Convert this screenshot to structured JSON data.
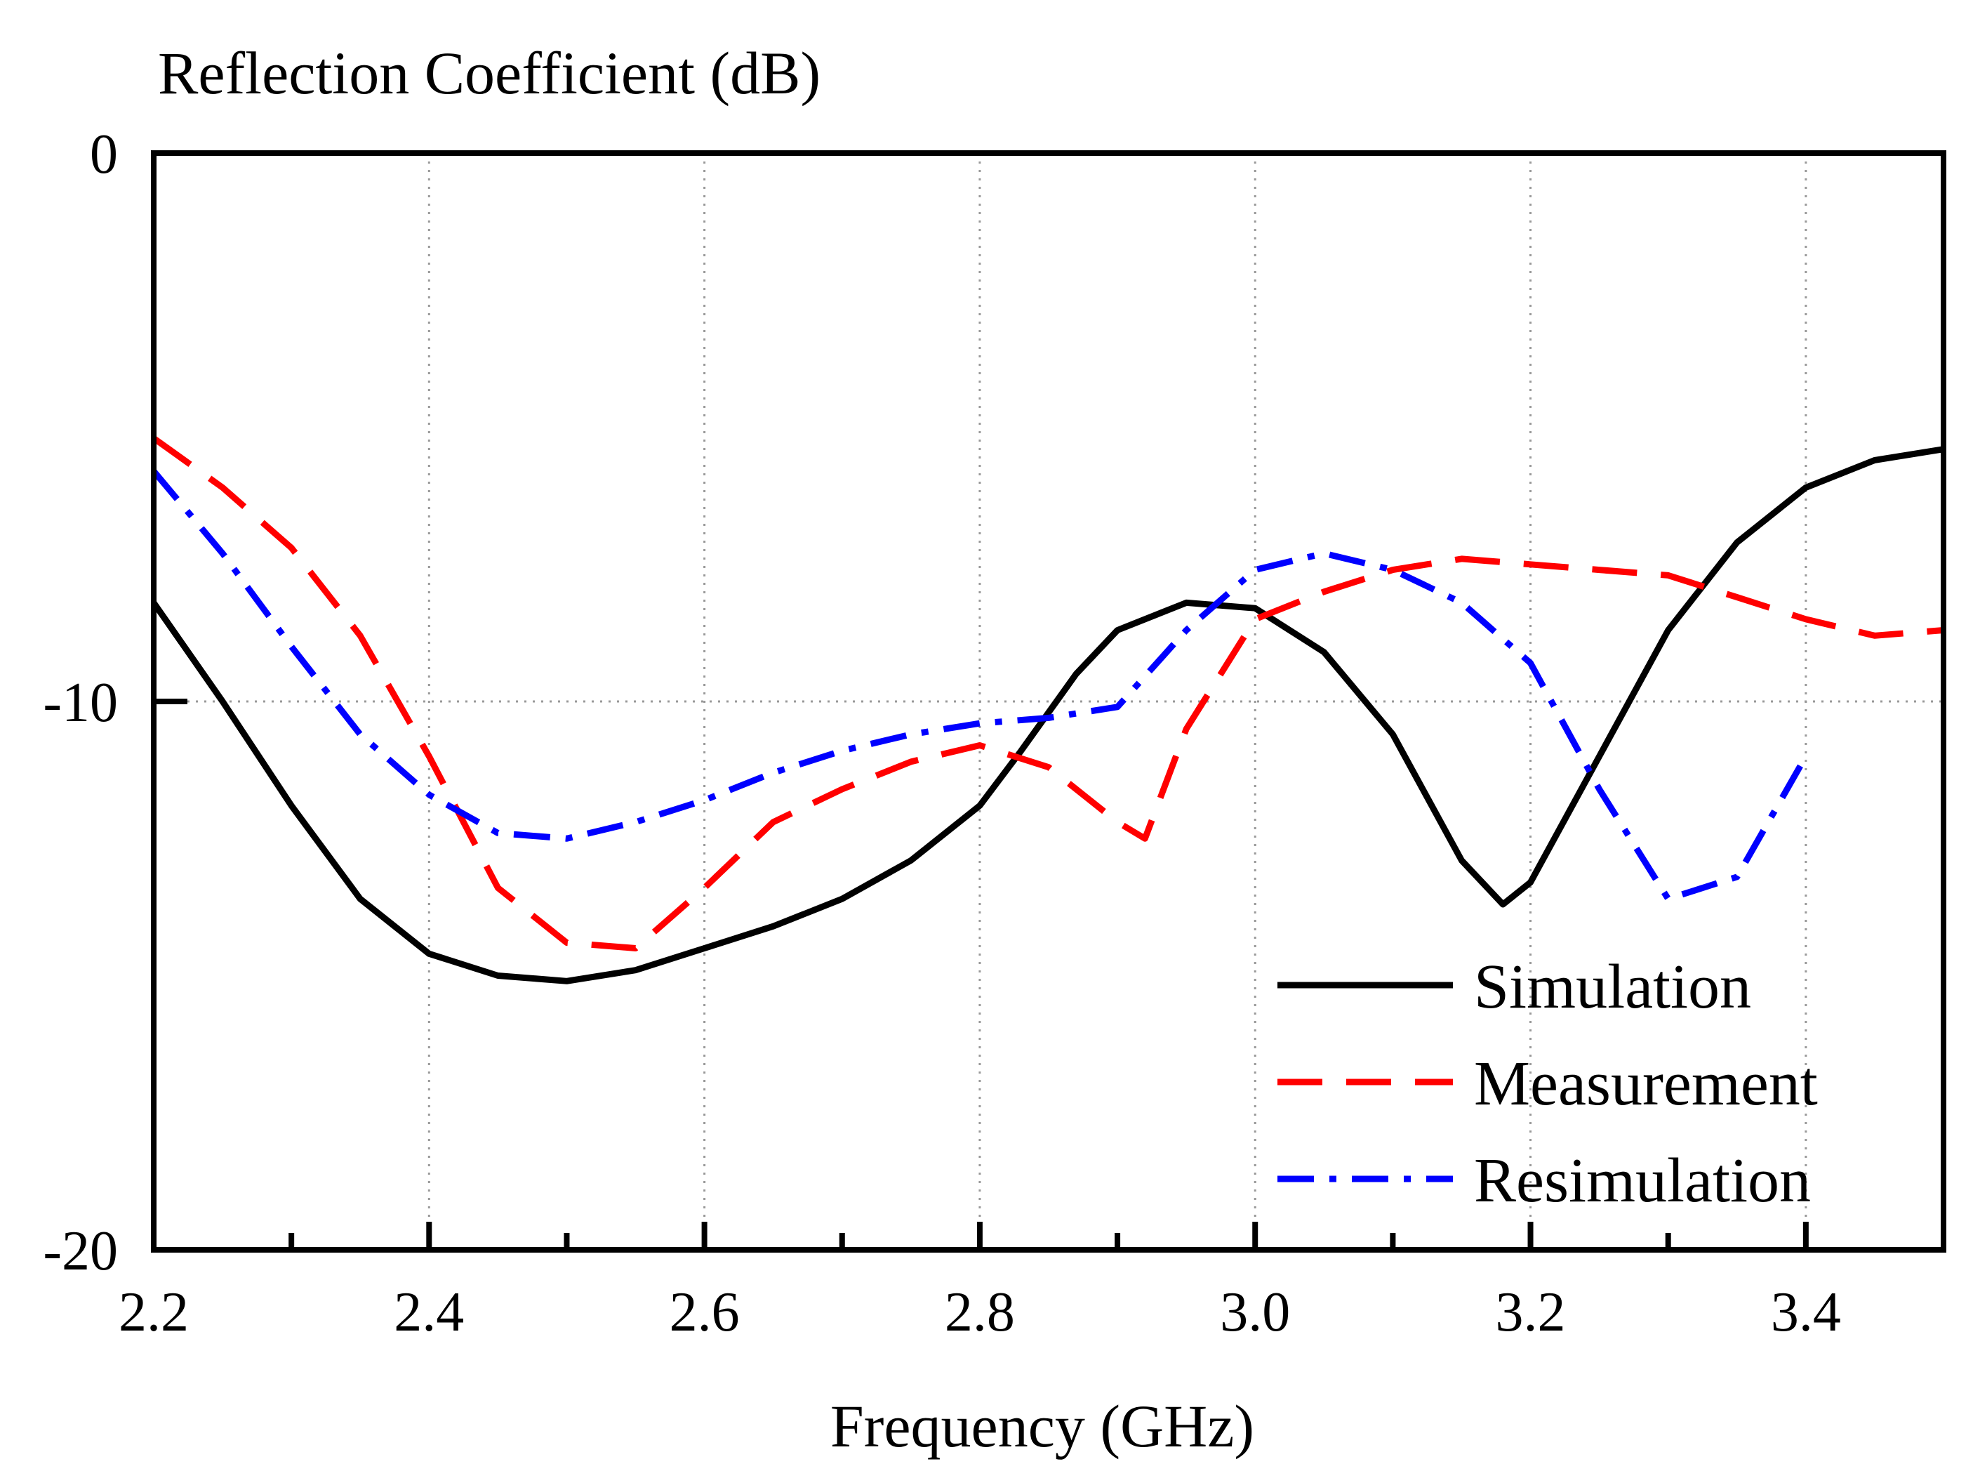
{
  "chart_data": {
    "type": "line",
    "title": "",
    "ylabel": "Reflection Coefficient (dB)",
    "xlabel": "Frequency (GHz)",
    "xlim": [
      2.2,
      3.5
    ],
    "ylim": [
      -20,
      0
    ],
    "x_ticks": [
      2.2,
      2.4,
      2.6,
      2.8,
      3.0,
      3.2,
      3.4
    ],
    "x_tick_labels": [
      "2.2",
      "2.4",
      "2.6",
      "2.8",
      "3.0",
      "3.2",
      "3.4"
    ],
    "x_minor_ticks": [
      2.3,
      2.5,
      2.7,
      2.9,
      3.1,
      3.3
    ],
    "y_ticks": [
      0,
      -10,
      -20
    ],
    "y_tick_labels": [
      "0",
      "-10",
      "-20"
    ],
    "grid": true,
    "legend_position": "bottom-right",
    "series": [
      {
        "name": "Simulation",
        "color": "#000000",
        "dash": "solid",
        "x": [
          2.2,
          2.25,
          2.3,
          2.35,
          2.4,
          2.45,
          2.5,
          2.55,
          2.6,
          2.65,
          2.7,
          2.75,
          2.8,
          2.83,
          2.87,
          2.9,
          2.95,
          3.0,
          3.05,
          3.1,
          3.15,
          3.18,
          3.2,
          3.25,
          3.3,
          3.35,
          3.4,
          3.45,
          3.5
        ],
        "y": [
          -8.2,
          -10.0,
          -11.9,
          -13.6,
          -14.6,
          -15.0,
          -15.1,
          -14.9,
          -14.5,
          -14.1,
          -13.6,
          -12.9,
          -11.9,
          -10.9,
          -9.5,
          -8.7,
          -8.2,
          -8.3,
          -9.1,
          -10.6,
          -12.9,
          -13.7,
          -13.3,
          -11.0,
          -8.7,
          -7.1,
          -6.1,
          -5.6,
          -5.4
        ]
      },
      {
        "name": "Measurement",
        "color": "#ff0000",
        "dash": "dashed",
        "x": [
          2.2,
          2.25,
          2.3,
          2.35,
          2.4,
          2.45,
          2.5,
          2.55,
          2.6,
          2.65,
          2.7,
          2.75,
          2.8,
          2.85,
          2.9,
          2.92,
          2.95,
          3.0,
          3.05,
          3.1,
          3.15,
          3.2,
          3.25,
          3.3,
          3.35,
          3.4,
          3.45,
          3.5
        ],
        "y": [
          -5.2,
          -6.1,
          -7.2,
          -8.8,
          -11.0,
          -13.4,
          -14.4,
          -14.5,
          -13.4,
          -12.2,
          -11.6,
          -11.1,
          -10.8,
          -11.2,
          -12.2,
          -12.5,
          -10.5,
          -8.5,
          -8.0,
          -7.6,
          -7.4,
          -7.5,
          -7.6,
          -7.7,
          -8.1,
          -8.5,
          -8.8,
          -8.7
        ]
      },
      {
        "name": "Resimulation",
        "color": "#0000ff",
        "dash": "dashdot",
        "x": [
          2.2,
          2.25,
          2.3,
          2.35,
          2.4,
          2.45,
          2.5,
          2.55,
          2.6,
          2.65,
          2.7,
          2.75,
          2.8,
          2.85,
          2.9,
          2.95,
          3.0,
          3.05,
          3.1,
          3.15,
          3.2,
          3.25,
          3.3,
          3.35,
          3.4
        ],
        "y": [
          -5.8,
          -7.3,
          -9.0,
          -10.6,
          -11.7,
          -12.4,
          -12.5,
          -12.2,
          -11.8,
          -11.3,
          -10.9,
          -10.6,
          -10.4,
          -10.3,
          -10.1,
          -8.7,
          -7.6,
          -7.3,
          -7.6,
          -8.2,
          -9.3,
          -11.6,
          -13.6,
          -13.2,
          -11.0
        ]
      }
    ]
  }
}
